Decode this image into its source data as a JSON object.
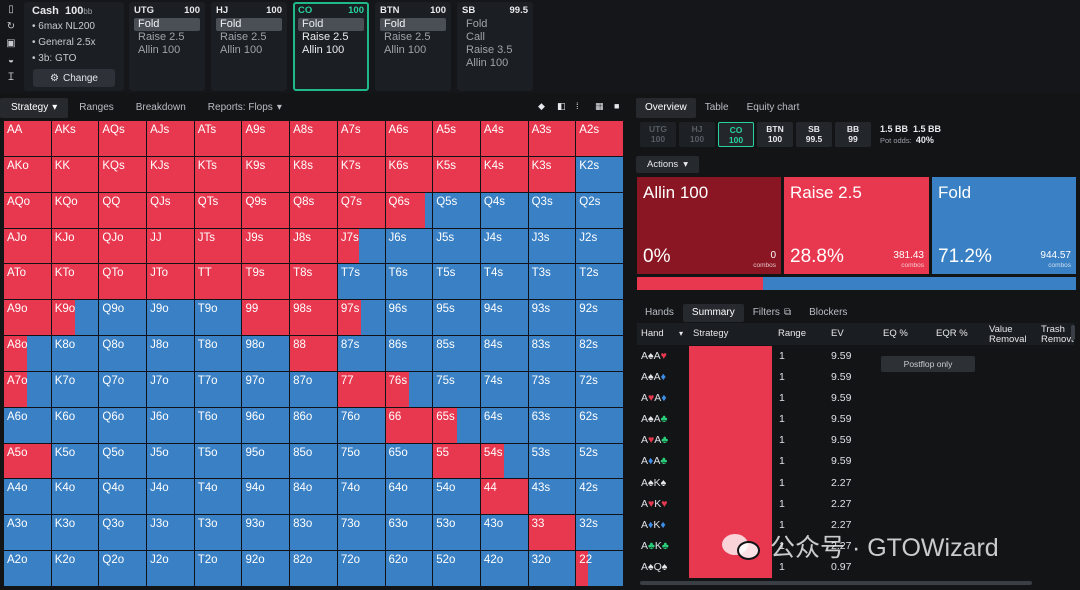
{
  "sidebar_icons": [
    "bookmark-icon",
    "refresh-icon",
    "save-icon",
    "gamepad-icon",
    "text-cursor-icon"
  ],
  "cash": {
    "title": "Cash",
    "stack": "100",
    "stack_unit": "bb",
    "items": [
      "6max NL200",
      "General 2.5x",
      "3b: GTO"
    ],
    "change_label": "Change"
  },
  "seats": [
    {
      "pos": "UTG",
      "stack": "100",
      "actions": [
        "Fold",
        "Raise 2.5",
        "Allin 100"
      ],
      "selected": 0
    },
    {
      "pos": "HJ",
      "stack": "100",
      "actions": [
        "Fold",
        "Raise 2.5",
        "Allin 100"
      ],
      "selected": 0
    },
    {
      "pos": "CO",
      "stack": "100",
      "actions": [
        "Fold",
        "Raise 2.5",
        "Allin 100"
      ],
      "selected": 0,
      "active": true
    },
    {
      "pos": "BTN",
      "stack": "100",
      "actions": [
        "Fold",
        "Raise 2.5",
        "Allin 100"
      ],
      "selected": 0
    },
    {
      "pos": "SB",
      "stack": "99.5",
      "actions": [
        "Fold",
        "Call",
        "Raise 3.5",
        "Allin 100"
      ],
      "selected": -1
    }
  ],
  "left_tabs": [
    "Strategy",
    "Ranges",
    "Breakdown",
    "Reports: Flops"
  ],
  "right_tabs": [
    "Overview",
    "Table",
    "Equity chart"
  ],
  "seat_row": [
    {
      "pos": "UTG",
      "stack": "100",
      "state": "dim"
    },
    {
      "pos": "HJ",
      "stack": "100",
      "state": "dim"
    },
    {
      "pos": "CO",
      "stack": "100",
      "state": "active"
    },
    {
      "pos": "BTN",
      "stack": "100",
      "state": "normal"
    },
    {
      "pos": "SB",
      "stack": "99.5",
      "state": "normal"
    },
    {
      "pos": "BB",
      "stack": "99",
      "state": "normal"
    }
  ],
  "pot": {
    "pot": "1.5 BB",
    "call": "1.5 BB",
    "odds_label": "Pot odds:",
    "odds": "40%"
  },
  "actions_label": "Actions",
  "action_cards": [
    {
      "name": "Allin 100",
      "pct": "0%",
      "combos": "0",
      "combos_label": "combos",
      "color": "#8b1623"
    },
    {
      "name": "Raise 2.5",
      "pct": "28.8%",
      "combos": "381.43",
      "combos_label": "combos",
      "color": "#e8384f"
    },
    {
      "name": "Fold",
      "pct": "71.2%",
      "combos": "944.57",
      "combos_label": "combos",
      "color": "#3a80c4"
    }
  ],
  "action_bar": [
    0.0,
    0.288,
    0.712
  ],
  "hand_tabs": [
    "Hands",
    "Summary",
    "Filters",
    "Blockers"
  ],
  "table_headers": {
    "hand": "Hand",
    "strategy": "Strategy",
    "range": "Range",
    "ev": "EV",
    "eq": "EQ %",
    "eqr": "EQR %",
    "value_removal": "Value Removal",
    "trash_removal": "Trash Removal"
  },
  "postflop_label": "Postflop only",
  "hand_rows": [
    {
      "c1": "A",
      "s1": "♠",
      "c2": "A",
      "s2": "♥",
      "range": "1",
      "ev": "9.59"
    },
    {
      "c1": "A",
      "s1": "♠",
      "c2": "A",
      "s2": "♦",
      "range": "1",
      "ev": "9.59"
    },
    {
      "c1": "A",
      "s1": "♥",
      "c2": "A",
      "s2": "♦",
      "range": "1",
      "ev": "9.59"
    },
    {
      "c1": "A",
      "s1": "♠",
      "c2": "A",
      "s2": "♣",
      "range": "1",
      "ev": "9.59"
    },
    {
      "c1": "A",
      "s1": "♥",
      "c2": "A",
      "s2": "♣",
      "range": "1",
      "ev": "9.59"
    },
    {
      "c1": "A",
      "s1": "♦",
      "c2": "A",
      "s2": "♣",
      "range": "1",
      "ev": "9.59"
    },
    {
      "c1": "A",
      "s1": "♠",
      "c2": "K",
      "s2": "♠",
      "range": "1",
      "ev": "2.27"
    },
    {
      "c1": "A",
      "s1": "♥",
      "c2": "K",
      "s2": "♥",
      "range": "1",
      "ev": "2.27"
    },
    {
      "c1": "A",
      "s1": "♦",
      "c2": "K",
      "s2": "♦",
      "range": "1",
      "ev": "2.27"
    },
    {
      "c1": "A",
      "s1": "♣",
      "c2": "K",
      "s2": "♣",
      "range": "1",
      "ev": "2.27"
    },
    {
      "c1": "A",
      "s1": "♠",
      "c2": "Q",
      "s2": "♠",
      "range": "1",
      "ev": "0.97"
    }
  ],
  "suit_colors": {
    "♠": "#e6e8eb",
    "♥": "#e8384f",
    "♦": "#3d8de6",
    "♣": "#2bd07a"
  },
  "colors": {
    "raise": "#e8384f",
    "fold": "#3a80c4",
    "active": "#27d39e"
  },
  "grid": {
    "ranks": [
      "A",
      "K",
      "Q",
      "J",
      "T",
      "9",
      "8",
      "7",
      "6",
      "5",
      "4",
      "3",
      "2"
    ],
    "raise_freq": [
      [
        1,
        1,
        1,
        1,
        1,
        1,
        1,
        1,
        1,
        1,
        1,
        1,
        1
      ],
      [
        1,
        1,
        1,
        1,
        1,
        1,
        1,
        1,
        1,
        1,
        1,
        1,
        0
      ],
      [
        1,
        1,
        1,
        1,
        1,
        1,
        1,
        1,
        0.85,
        0,
        0,
        0,
        0
      ],
      [
        1,
        1,
        1,
        1,
        1,
        1,
        1,
        0.45,
        0,
        0,
        0,
        0,
        0
      ],
      [
        1,
        1,
        1,
        1,
        1,
        1,
        1,
        0,
        0,
        0,
        0,
        0,
        0
      ],
      [
        1,
        0.5,
        0,
        0,
        0,
        1,
        1,
        0.5,
        0,
        0,
        0,
        0,
        0
      ],
      [
        0.5,
        0,
        0,
        0,
        0,
        0,
        1,
        0,
        0,
        0,
        0,
        0,
        0
      ],
      [
        0.5,
        0,
        0,
        0,
        0,
        0,
        0,
        1,
        0.5,
        0,
        0,
        0,
        0
      ],
      [
        0,
        0,
        0,
        0,
        0,
        0,
        0,
        0,
        1,
        0.5,
        0,
        0,
        0
      ],
      [
        1,
        0,
        0,
        0,
        0,
        0,
        0,
        0,
        0,
        1,
        0.5,
        0,
        0
      ],
      [
        0,
        0,
        0,
        0,
        0,
        0,
        0,
        0,
        0,
        0,
        1,
        0,
        0
      ],
      [
        0,
        0,
        0,
        0,
        0,
        0,
        0,
        0,
        0,
        0,
        0,
        1,
        0
      ],
      [
        0,
        0,
        0,
        0,
        0,
        0,
        0,
        0,
        0,
        0,
        0,
        0,
        0.25
      ]
    ]
  },
  "watermark": "公众号 · GTOWizard"
}
